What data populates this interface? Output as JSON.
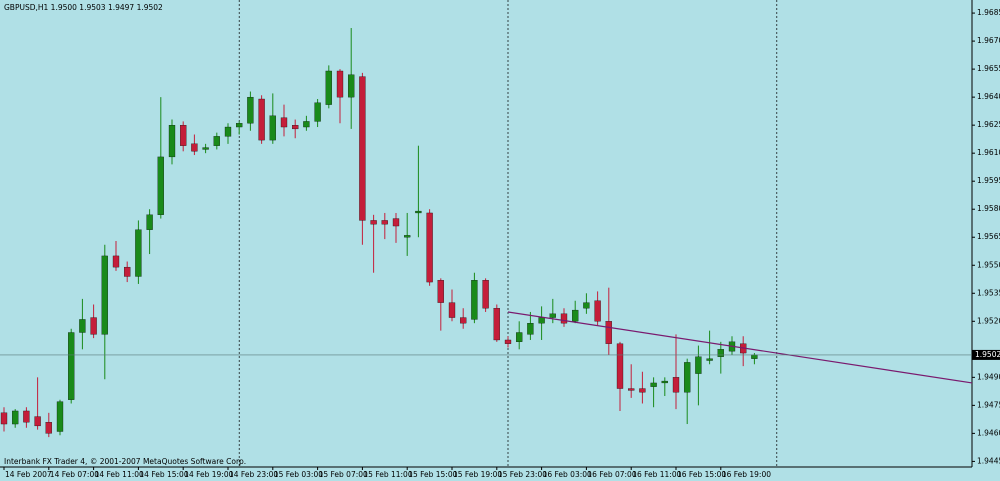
{
  "chart_data": {
    "type": "candlestick",
    "title": "GBPUSD,H1  1.9500 1.9503 1.9497 1.9502",
    "footer": "Interbank FX Trader 4, © 2001-2007 MetaQuotes Software Corp.",
    "categories": [
      "14 Feb 2007",
      null,
      null,
      null,
      "14 Feb 07:00",
      null,
      null,
      null,
      "14 Feb 11:00",
      null,
      null,
      null,
      "14 Feb 15:00",
      null,
      null,
      null,
      "14 Feb 19:00",
      null,
      null,
      null,
      "14 Feb 23:00",
      null,
      null,
      null,
      "15 Feb 03:00",
      null,
      null,
      null,
      "15 Feb 07:00",
      null,
      null,
      null,
      "15 Feb 11:00",
      null,
      null,
      null,
      "15 Feb 15:00",
      null,
      null,
      null,
      "15 Feb 19:00",
      null,
      null,
      null,
      "15 Feb 23:00",
      null,
      null,
      null,
      "16 Feb 03:00",
      null,
      null,
      null,
      "16 Feb 07:00",
      null,
      null,
      null,
      "16 Feb 11:00",
      null,
      null,
      null,
      "16 Feb 15:00",
      null,
      null,
      null,
      "16 Feb 19:00",
      null,
      null,
      null
    ],
    "open": [
      1.9471,
      1.9465,
      1.9472,
      1.9469,
      1.9466,
      1.9461,
      1.9478,
      1.9514,
      1.9522,
      1.9513,
      1.9555,
      1.9549,
      1.9544,
      1.9569,
      1.9577,
      1.9608,
      1.9625,
      1.9615,
      1.9612,
      1.9614,
      1.9619,
      1.9624,
      1.9626,
      1.9639,
      1.9617,
      1.9629,
      1.9625,
      1.9624,
      1.9627,
      1.9636,
      1.9654,
      1.964,
      1.9651,
      1.9574,
      1.9574,
      1.9575,
      1.9565,
      1.9578,
      1.9578,
      1.9542,
      1.953,
      1.9522,
      1.9521,
      1.9542,
      1.9527,
      1.951,
      1.9509,
      1.9513,
      1.9519,
      1.9522,
      1.9524,
      1.952,
      1.9527,
      1.9531,
      1.952,
      1.9508,
      1.9484,
      1.9484,
      1.9485,
      1.9487,
      1.949,
      1.9482,
      1.9492,
      1.9499,
      1.9501,
      1.9504,
      1.9508,
      1.95
    ],
    "high": [
      1.9474,
      1.9473,
      1.9474,
      1.949,
      1.9471,
      1.9478,
      1.9516,
      1.9532,
      1.9529,
      1.9561,
      1.9563,
      1.9552,
      1.9574,
      1.958,
      1.964,
      1.9628,
      1.9627,
      1.962,
      1.9615,
      1.9621,
      1.9626,
      1.9627,
      1.9643,
      1.9641,
      1.9642,
      1.9636,
      1.9628,
      1.963,
      1.9639,
      1.9657,
      1.9655,
      1.9677,
      1.9653,
      1.9577,
      1.9578,
      1.9578,
      1.9578,
      1.9614,
      1.958,
      1.9543,
      1.9537,
      1.9527,
      1.9546,
      1.9543,
      1.9529,
      1.9512,
      1.952,
      1.9525,
      1.9528,
      1.9532,
      1.9527,
      1.9531,
      1.9535,
      1.9536,
      1.9538,
      1.9509,
      1.9497,
      1.9493,
      1.949,
      1.949,
      1.9513,
      1.95,
      1.9507,
      1.9515,
      1.9509,
      1.9512,
      1.9512,
      1.9503
    ],
    "low": [
      1.9461,
      1.9463,
      1.9463,
      1.9462,
      1.9458,
      1.9459,
      1.9476,
      1.9505,
      1.9511,
      1.9489,
      1.9547,
      1.9541,
      1.954,
      1.9556,
      1.9575,
      1.9604,
      1.9611,
      1.9609,
      1.961,
      1.9612,
      1.9615,
      1.962,
      1.9622,
      1.9615,
      1.9615,
      1.9619,
      1.9618,
      1.9622,
      1.9624,
      1.9634,
      1.9626,
      1.9623,
      1.9561,
      1.9546,
      1.9564,
      1.9562,
      1.9555,
      1.9565,
      1.9539,
      1.9515,
      1.952,
      1.9516,
      1.9519,
      1.9525,
      1.9509,
      1.9506,
      1.9505,
      1.951,
      1.951,
      1.9519,
      1.9517,
      1.9519,
      1.9524,
      1.9518,
      1.9502,
      1.9472,
      1.9479,
      1.9476,
      1.9474,
      1.948,
      1.9473,
      1.9465,
      1.9475,
      1.9497,
      1.9492,
      1.9502,
      1.9496,
      1.9497
    ],
    "close": [
      1.9465,
      1.9472,
      1.9466,
      1.9464,
      1.946,
      1.9477,
      1.9514,
      1.9521,
      1.9513,
      1.9555,
      1.9549,
      1.9544,
      1.9569,
      1.9577,
      1.9608,
      1.9625,
      1.9614,
      1.9611,
      1.9613,
      1.9619,
      1.9624,
      1.9626,
      1.964,
      1.9617,
      1.963,
      1.9624,
      1.9623,
      1.9627,
      1.9637,
      1.9654,
      1.964,
      1.9652,
      1.9574,
      1.9572,
      1.9572,
      1.9571,
      1.9566,
      1.9579,
      1.9541,
      1.953,
      1.9522,
      1.9519,
      1.9542,
      1.9527,
      1.951,
      1.9508,
      1.9514,
      1.9519,
      1.9522,
      1.9524,
      1.9519,
      1.9526,
      1.953,
      1.952,
      1.9508,
      1.9484,
      1.9483,
      1.9482,
      1.9487,
      1.9488,
      1.9482,
      1.9498,
      1.9501,
      1.95,
      1.9505,
      1.9509,
      1.9503,
      1.9502
    ],
    "up_color": "#1a8a1a",
    "down_color": "#c41e3a",
    "last_price": 1.9502,
    "trendline": {
      "color": "#7a1a6e",
      "values": [
        1.9525,
        1.9487
      ]
    },
    "ylim": [
      1.9442,
      1.9692
    ],
    "yticks": [
      1.9685,
      {
        "value": 1.967,
        "label": "1.9670"
      },
      1.9655,
      {
        "value": 1.964,
        "label": "1.9640"
      },
      1.9625,
      {
        "value": 1.961,
        "label": "1.9610"
      },
      1.9595,
      {
        "value": 1.958,
        "label": "1.9580"
      },
      1.9565,
      {
        "value": 1.955,
        "label": "1.9550"
      },
      1.9535,
      {
        "value": 1.952,
        "label": "1.9520"
      },
      {
        "value": 1.949,
        "label": "1.9490"
      },
      1.9475,
      {
        "value": 1.946,
        "label": "1.9460"
      },
      1.9445
    ]
  }
}
